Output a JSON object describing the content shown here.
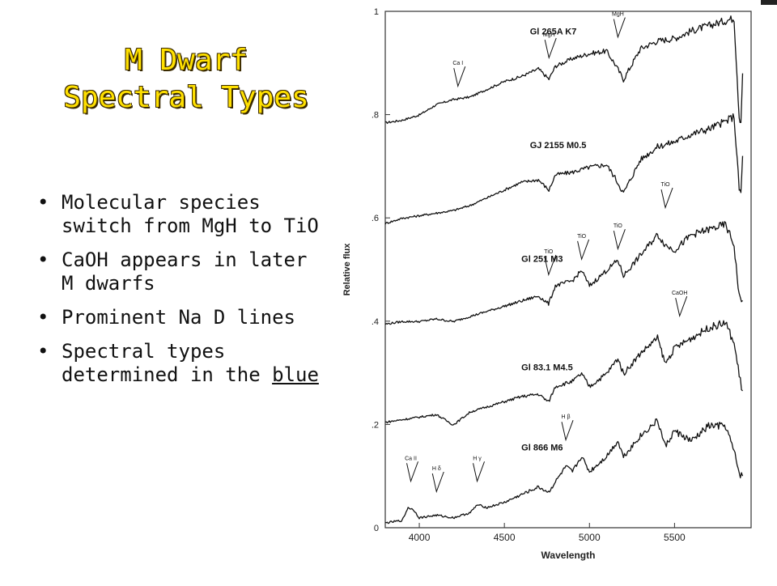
{
  "slide": {
    "title_lines": [
      "M Dwarf",
      "Spectral Types"
    ],
    "bullets": [
      {
        "text": "Molecular species switch from MgH to TiO"
      },
      {
        "text": "CaOH appears in later M dwarfs"
      },
      {
        "text": "Prominent Na D lines"
      },
      {
        "text_before": "Spectral types determined in the ",
        "underlined": "blue"
      }
    ],
    "bullet_char": "•"
  },
  "chart_data": {
    "type": "line",
    "xlabel": "Wavelength",
    "ylabel": "Relative flux",
    "xlim": [
      3800,
      5950
    ],
    "ylim": [
      0,
      1
    ],
    "xticks": [
      4000,
      4500,
      5000,
      5500
    ],
    "yticks": [
      0,
      0.2,
      0.4,
      0.6,
      0.8,
      1
    ],
    "ytick_labels": [
      "0",
      ".2",
      ".4",
      ".6",
      ".8",
      "1"
    ],
    "grid": false,
    "series": [
      {
        "name": "Gl 265A K7",
        "x": [
          3800,
          3900,
          4000,
          4100,
          4200,
          4300,
          4400,
          4500,
          4600,
          4700,
          4762,
          4800,
          4900,
          5000,
          5100,
          5150,
          5200,
          5300,
          5400,
          5500,
          5600,
          5700,
          5800,
          5850,
          5880,
          5890,
          5900
        ],
        "y": [
          0.785,
          0.79,
          0.8,
          0.82,
          0.83,
          0.835,
          0.85,
          0.865,
          0.875,
          0.89,
          0.87,
          0.895,
          0.91,
          0.92,
          0.925,
          0.9,
          0.87,
          0.93,
          0.945,
          0.95,
          0.965,
          0.975,
          0.985,
          0.99,
          0.8,
          0.79,
          0.88
        ]
      },
      {
        "name": "GJ 2155 M0.5",
        "x": [
          3800,
          3900,
          4000,
          4100,
          4200,
          4300,
          4400,
          4500,
          4600,
          4700,
          4762,
          4800,
          4900,
          5000,
          5100,
          5150,
          5200,
          5300,
          5400,
          5500,
          5600,
          5700,
          5800,
          5850,
          5880,
          5890,
          5900
        ],
        "y": [
          0.59,
          0.6,
          0.605,
          0.61,
          0.615,
          0.625,
          0.64,
          0.655,
          0.67,
          0.675,
          0.655,
          0.685,
          0.69,
          0.7,
          0.705,
          0.68,
          0.65,
          0.715,
          0.74,
          0.75,
          0.765,
          0.775,
          0.79,
          0.8,
          0.66,
          0.65,
          0.72
        ]
      },
      {
        "name": "Gl 251 M3",
        "x": [
          3800,
          3900,
          4000,
          4100,
          4200,
          4300,
          4400,
          4500,
          4600,
          4700,
          4760,
          4800,
          4900,
          4954,
          5000,
          5100,
          5167,
          5200,
          5300,
          5400,
          5446,
          5500,
          5600,
          5700,
          5800,
          5850,
          5880,
          5900
        ],
        "y": [
          0.395,
          0.4,
          0.4,
          0.405,
          0.4,
          0.41,
          0.42,
          0.43,
          0.44,
          0.45,
          0.435,
          0.47,
          0.48,
          0.5,
          0.47,
          0.5,
          0.52,
          0.49,
          0.53,
          0.57,
          0.55,
          0.54,
          0.57,
          0.58,
          0.59,
          0.55,
          0.45,
          0.44
        ]
      },
      {
        "name": "Gl 83.1 M4.5",
        "x": [
          3800,
          3900,
          4000,
          4100,
          4200,
          4300,
          4400,
          4500,
          4600,
          4700,
          4760,
          4800,
          4900,
          4954,
          5000,
          5100,
          5167,
          5200,
          5300,
          5400,
          5446,
          5500,
          5600,
          5700,
          5800,
          5850,
          5880,
          5900
        ],
        "y": [
          0.205,
          0.21,
          0.215,
          0.22,
          0.2,
          0.225,
          0.235,
          0.245,
          0.255,
          0.26,
          0.245,
          0.275,
          0.285,
          0.3,
          0.275,
          0.3,
          0.33,
          0.3,
          0.34,
          0.37,
          0.32,
          0.35,
          0.37,
          0.39,
          0.4,
          0.36,
          0.3,
          0.265
        ]
      },
      {
        "name": "Gl 866 M6",
        "x": [
          3800,
          3900,
          3934,
          3968,
          4000,
          4100,
          4200,
          4300,
          4340,
          4400,
          4500,
          4600,
          4700,
          4760,
          4800,
          4861,
          4900,
          4954,
          5000,
          5100,
          5167,
          5200,
          5300,
          5400,
          5446,
          5500,
          5600,
          5700,
          5800,
          5850,
          5880,
          5900
        ],
        "y": [
          0.01,
          0.015,
          0.04,
          0.035,
          0.02,
          0.025,
          0.02,
          0.03,
          0.045,
          0.04,
          0.05,
          0.065,
          0.08,
          0.07,
          0.09,
          0.12,
          0.11,
          0.14,
          0.11,
          0.14,
          0.17,
          0.14,
          0.18,
          0.21,
          0.16,
          0.19,
          0.17,
          0.2,
          0.2,
          0.15,
          0.11,
          0.1
        ]
      }
    ],
    "series_labels": [
      "Gl 265A K7",
      "GJ 2155 M0.5",
      "Gl 251 M3",
      "Gl 83.1 M4.5",
      "Gl 866 M6"
    ],
    "annotations": [
      {
        "text": "Ca I",
        "x": 4227,
        "y": 0.835
      },
      {
        "text": "MgH",
        "x": 4762,
        "y": 0.89
      },
      {
        "text": "MgH",
        "x": 5167,
        "y": 0.93
      },
      {
        "text": "TiO",
        "x": 4760,
        "y": 0.47
      },
      {
        "text": "TiO",
        "x": 4954,
        "y": 0.5
      },
      {
        "text": "TiO",
        "x": 5167,
        "y": 0.52
      },
      {
        "text": "TiO",
        "x": 5446,
        "y": 0.6
      },
      {
        "text": "CaOH",
        "x": 5530,
        "y": 0.39
      },
      {
        "text": "Ca II",
        "x": 3950,
        "y": 0.07
      },
      {
        "text": "H δ",
        "x": 4101,
        "y": 0.05
      },
      {
        "text": "H γ",
        "x": 4340,
        "y": 0.07
      },
      {
        "text": "H β",
        "x": 4861,
        "y": 0.15
      }
    ]
  }
}
